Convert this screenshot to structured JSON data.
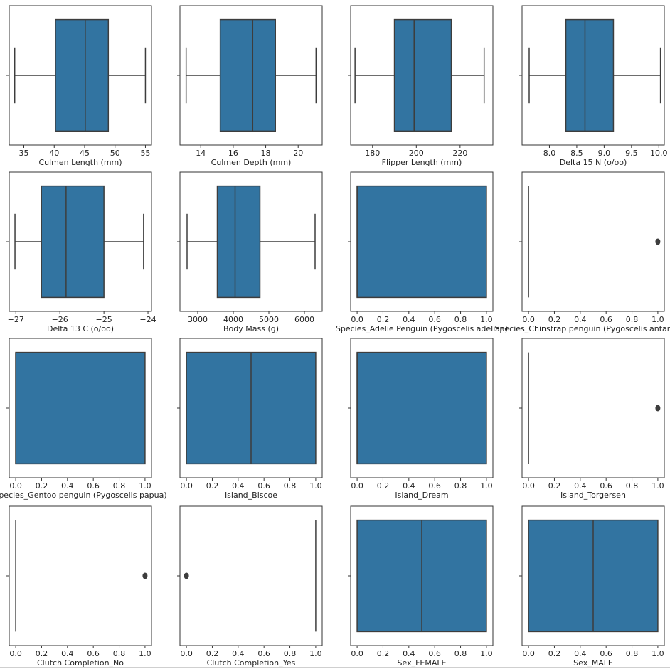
{
  "chart_data": [
    {
      "type": "box",
      "xlabel": "Culmen Length (mm)",
      "xlim": [
        32.6,
        56.0
      ],
      "xticks": [
        35,
        40,
        45,
        50,
        55
      ],
      "xtick_labels": [
        "35",
        "40",
        "45",
        "50",
        "55"
      ],
      "box": {
        "whisker_low": 33.5,
        "q1": 40.2,
        "median": 45.1,
        "q3": 48.9,
        "whisker_high": 55.0,
        "outliers": []
      },
      "color": "#3274a1"
    },
    {
      "type": "box",
      "xlabel": "Culmen Depth (mm)",
      "xlim": [
        12.72,
        21.48
      ],
      "xticks": [
        14,
        16,
        18,
        20
      ],
      "xtick_labels": [
        "14",
        "16",
        "18",
        "20"
      ],
      "box": {
        "whisker_low": 13.1,
        "q1": 15.2,
        "median": 17.2,
        "q3": 18.6,
        "whisker_high": 21.1,
        "outliers": []
      },
      "color": "#3274a1"
    },
    {
      "type": "box",
      "xlabel": "Flipper Length (mm)",
      "xlim": [
        170,
        235
      ],
      "xticks": [
        180,
        200,
        220
      ],
      "xtick_labels": [
        "180",
        "200",
        "220"
      ],
      "box": {
        "whisker_low": 172,
        "q1": 190,
        "median": 199,
        "q3": 216,
        "whisker_high": 231,
        "outliers": []
      },
      "color": "#3274a1"
    },
    {
      "type": "box",
      "xlabel": "Delta 15 N (o/oo)",
      "xlim": [
        7.5,
        10.1
      ],
      "xticks": [
        8.0,
        8.5,
        9.0,
        9.5,
        10.0
      ],
      "xtick_labels": [
        "8.0",
        "8.5",
        "9.0",
        "9.5",
        "10.0"
      ],
      "box": {
        "whisker_low": 7.63,
        "q1": 8.3,
        "median": 8.65,
        "q3": 9.17,
        "whisker_high": 10.03,
        "outliers": []
      },
      "color": "#3274a1"
    },
    {
      "type": "box",
      "xlabel": "Delta 13 C (o/oo)",
      "xlim": [
        -27.15,
        -23.92
      ],
      "xticks": [
        -27,
        -26,
        -25,
        -24
      ],
      "xtick_labels": [
        "−27",
        "−26",
        "−25",
        "−24"
      ],
      "box": {
        "whisker_low": -27.02,
        "q1": -26.42,
        "median": -25.86,
        "q3": -25.0,
        "whisker_high": -24.1,
        "outliers": []
      },
      "color": "#3274a1"
    },
    {
      "type": "box",
      "xlabel": "Body Mass (g)",
      "xlim": [
        2500,
        6500
      ],
      "xticks": [
        3000,
        4000,
        5000,
        6000
      ],
      "xtick_labels": [
        "3000",
        "4000",
        "5000",
        "6000"
      ],
      "box": {
        "whisker_low": 2700,
        "q1": 3550,
        "median": 4050,
        "q3": 4750,
        "whisker_high": 6300,
        "outliers": []
      },
      "color": "#3274a1"
    },
    {
      "type": "box",
      "xlabel": "Species_Adelie Penguin (Pygoscelis adeliae)",
      "xlim": [
        -0.05,
        1.05
      ],
      "xticks": [
        0.0,
        0.2,
        0.4,
        0.6,
        0.8,
        1.0
      ],
      "xtick_labels": [
        "0.0",
        "0.2",
        "0.4",
        "0.6",
        "0.8",
        "1.0"
      ],
      "box": {
        "whisker_low": 0,
        "q1": 0,
        "median": 0,
        "q3": 1,
        "whisker_high": 1,
        "outliers": []
      },
      "color": "#3274a1"
    },
    {
      "type": "box",
      "xlabel": "Species_Chinstrap penguin (Pygoscelis antarctica)",
      "xlim": [
        -0.05,
        1.05
      ],
      "xticks": [
        0.0,
        0.2,
        0.4,
        0.6,
        0.8,
        1.0
      ],
      "xtick_labels": [
        "0.0",
        "0.2",
        "0.4",
        "0.6",
        "0.8",
        "1.0"
      ],
      "box": {
        "whisker_low": 0,
        "q1": 0,
        "median": 0,
        "q3": 0,
        "whisker_high": 0,
        "outliers": [
          1
        ]
      },
      "color": "#3274a1"
    },
    {
      "type": "box",
      "xlabel": "Species_Gentoo penguin (Pygoscelis papua)",
      "xlim": [
        -0.05,
        1.05
      ],
      "xticks": [
        0.0,
        0.2,
        0.4,
        0.6,
        0.8,
        1.0
      ],
      "xtick_labels": [
        "0.0",
        "0.2",
        "0.4",
        "0.6",
        "0.8",
        "1.0"
      ],
      "box": {
        "whisker_low": 0,
        "q1": 0,
        "median": 0,
        "q3": 1,
        "whisker_high": 1,
        "outliers": []
      },
      "color": "#3274a1"
    },
    {
      "type": "box",
      "xlabel": "Island_Biscoe",
      "xlim": [
        -0.05,
        1.05
      ],
      "xticks": [
        0.0,
        0.2,
        0.4,
        0.6,
        0.8,
        1.0
      ],
      "xtick_labels": [
        "0.0",
        "0.2",
        "0.4",
        "0.6",
        "0.8",
        "1.0"
      ],
      "box": {
        "whisker_low": 0,
        "q1": 0,
        "median": 0.5,
        "q3": 1,
        "whisker_high": 1,
        "outliers": []
      },
      "color": "#3274a1"
    },
    {
      "type": "box",
      "xlabel": "Island_Dream",
      "xlim": [
        -0.05,
        1.05
      ],
      "xticks": [
        0.0,
        0.2,
        0.4,
        0.6,
        0.8,
        1.0
      ],
      "xtick_labels": [
        "0.0",
        "0.2",
        "0.4",
        "0.6",
        "0.8",
        "1.0"
      ],
      "box": {
        "whisker_low": 0,
        "q1": 0,
        "median": 0,
        "q3": 1,
        "whisker_high": 1,
        "outliers": []
      },
      "color": "#3274a1"
    },
    {
      "type": "box",
      "xlabel": "Island_Torgersen",
      "xlim": [
        -0.05,
        1.05
      ],
      "xticks": [
        0.0,
        0.2,
        0.4,
        0.6,
        0.8,
        1.0
      ],
      "xtick_labels": [
        "0.0",
        "0.2",
        "0.4",
        "0.6",
        "0.8",
        "1.0"
      ],
      "box": {
        "whisker_low": 0,
        "q1": 0,
        "median": 0,
        "q3": 0,
        "whisker_high": 0,
        "outliers": [
          1
        ]
      },
      "color": "#3274a1"
    },
    {
      "type": "box",
      "xlabel": "Clutch Completion_No",
      "xlim": [
        -0.05,
        1.05
      ],
      "xticks": [
        0.0,
        0.2,
        0.4,
        0.6,
        0.8,
        1.0
      ],
      "xtick_labels": [
        "0.0",
        "0.2",
        "0.4",
        "0.6",
        "0.8",
        "1.0"
      ],
      "box": {
        "whisker_low": 0,
        "q1": 0,
        "median": 0,
        "q3": 0,
        "whisker_high": 0,
        "outliers": [
          1
        ]
      },
      "color": "#3274a1"
    },
    {
      "type": "box",
      "xlabel": "Clutch Completion_Yes",
      "xlim": [
        -0.05,
        1.05
      ],
      "xticks": [
        0.0,
        0.2,
        0.4,
        0.6,
        0.8,
        1.0
      ],
      "xtick_labels": [
        "0.0",
        "0.2",
        "0.4",
        "0.6",
        "0.8",
        "1.0"
      ],
      "box": {
        "whisker_low": 1,
        "q1": 1,
        "median": 1,
        "q3": 1,
        "whisker_high": 1,
        "outliers": [
          0
        ]
      },
      "color": "#3274a1"
    },
    {
      "type": "box",
      "xlabel": "Sex_FEMALE",
      "xlim": [
        -0.05,
        1.05
      ],
      "xticks": [
        0.0,
        0.2,
        0.4,
        0.6,
        0.8,
        1.0
      ],
      "xtick_labels": [
        "0.0",
        "0.2",
        "0.4",
        "0.6",
        "0.8",
        "1.0"
      ],
      "box": {
        "whisker_low": 0,
        "q1": 0,
        "median": 0.5,
        "q3": 1,
        "whisker_high": 1,
        "outliers": []
      },
      "color": "#3274a1"
    },
    {
      "type": "box",
      "xlabel": "Sex_MALE",
      "xlim": [
        -0.05,
        1.05
      ],
      "xticks": [
        0.0,
        0.2,
        0.4,
        0.6,
        0.8,
        1.0
      ],
      "xtick_labels": [
        "0.0",
        "0.2",
        "0.4",
        "0.6",
        "0.8",
        "1.0"
      ],
      "box": {
        "whisker_low": 0,
        "q1": 0,
        "median": 0.5,
        "q3": 1,
        "whisker_high": 1,
        "outliers": []
      },
      "color": "#3274a1"
    }
  ]
}
